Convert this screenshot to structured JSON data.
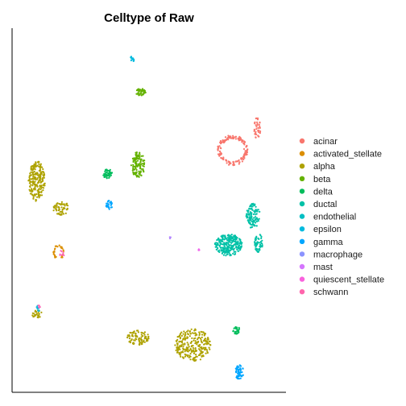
{
  "chart_data": {
    "type": "scatter",
    "title": "Celltype of Raw",
    "xlabel": "",
    "ylabel": "",
    "xlim": [
      0,
      100
    ],
    "ylim": [
      0,
      100
    ],
    "grid": false,
    "legend_position": "right",
    "series": [
      {
        "name": "acinar",
        "color": "#F8766D",
        "clusters": [
          {
            "cx": 80.5,
            "cy": 66.5,
            "rx": 5.5,
            "ry": 4.2,
            "n": 160,
            "ring": true
          },
          {
            "cx": 89.5,
            "cy": 72.5,
            "rx": 1.2,
            "ry": 3.0,
            "n": 40,
            "ring": false
          }
        ]
      },
      {
        "name": "activated_stellate",
        "color": "#DB8E00",
        "clusters": [
          {
            "cx": 17.0,
            "cy": 38.5,
            "rx": 2.0,
            "ry": 2.0,
            "n": 30,
            "ring": true
          }
        ]
      },
      {
        "name": "alpha",
        "color": "#AEA200",
        "clusters": [
          {
            "cx": 9.0,
            "cy": 58.0,
            "rx": 3.0,
            "ry": 5.5,
            "n": 220,
            "ring": false
          },
          {
            "cx": 66.0,
            "cy": 13.0,
            "rx": 6.5,
            "ry": 4.5,
            "n": 260,
            "ring": false
          },
          {
            "cx": 46.0,
            "cy": 15.0,
            "rx": 4.0,
            "ry": 2.0,
            "n": 90,
            "ring": false
          },
          {
            "cx": 18.0,
            "cy": 50.5,
            "rx": 3.0,
            "ry": 1.8,
            "n": 60,
            "ring": false
          },
          {
            "cx": 9.0,
            "cy": 21.5,
            "rx": 2.0,
            "ry": 1.0,
            "n": 25,
            "ring": false
          }
        ]
      },
      {
        "name": "beta",
        "color": "#64B200",
        "clusters": [
          {
            "cx": 46.0,
            "cy": 62.5,
            "rx": 2.5,
            "ry": 3.5,
            "n": 120,
            "ring": false
          },
          {
            "cx": 47.0,
            "cy": 82.5,
            "rx": 1.8,
            "ry": 1.2,
            "n": 45,
            "ring": false
          }
        ]
      },
      {
        "name": "delta",
        "color": "#00BD5C",
        "clusters": [
          {
            "cx": 35.0,
            "cy": 60.0,
            "rx": 1.8,
            "ry": 1.4,
            "n": 45,
            "ring": false
          },
          {
            "cx": 82.0,
            "cy": 17.0,
            "rx": 1.4,
            "ry": 1.0,
            "n": 30,
            "ring": false
          }
        ]
      },
      {
        "name": "ductal",
        "color": "#00C1A7",
        "clusters": [
          {
            "cx": 79.0,
            "cy": 40.5,
            "rx": 5.0,
            "ry": 3.0,
            "n": 260,
            "ring": false
          },
          {
            "cx": 88.0,
            "cy": 48.5,
            "rx": 2.5,
            "ry": 3.5,
            "n": 110,
            "ring": false
          },
          {
            "cx": 90.0,
            "cy": 41.0,
            "rx": 1.5,
            "ry": 2.5,
            "n": 60,
            "ring": false
          }
        ]
      },
      {
        "name": "endothelial",
        "color": "#00BADE",
        "clusters": [
          {
            "cx": 44.0,
            "cy": 91.5,
            "rx": 0.8,
            "ry": 1.2,
            "n": 12,
            "ring": false
          },
          {
            "cx": 9.5,
            "cy": 23.0,
            "rx": 0.8,
            "ry": 0.8,
            "n": 8,
            "ring": false
          }
        ]
      },
      {
        "name": "epsilon",
        "color": "#00A6FF",
        "clusters": [
          {
            "cx": 35.5,
            "cy": 51.5,
            "rx": 1.2,
            "ry": 1.2,
            "n": 30,
            "ring": false
          }
        ]
      },
      {
        "name": "gamma",
        "color": "#00A6FF",
        "clusters": [
          {
            "cx": 83.0,
            "cy": 5.5,
            "rx": 1.5,
            "ry": 2.0,
            "n": 60,
            "ring": false
          }
        ]
      },
      {
        "name": "macrophage",
        "color": "#B385FF",
        "clusters": [
          {
            "cx": 57.5,
            "cy": 42.5,
            "rx": 0.4,
            "ry": 0.4,
            "n": 4,
            "ring": false
          }
        ]
      },
      {
        "name": "mast",
        "color": "#EF67EB",
        "clusters": [
          {
            "cx": 68.0,
            "cy": 39.0,
            "rx": 0.4,
            "ry": 0.4,
            "n": 4,
            "ring": false
          }
        ]
      },
      {
        "name": "quiescent_stellate",
        "color": "#FF63B6",
        "clusters": [
          {
            "cx": 18.0,
            "cy": 38.0,
            "rx": 1.0,
            "ry": 1.0,
            "n": 8,
            "ring": false
          }
        ]
      },
      {
        "name": "schwann",
        "color": "#FF63B6",
        "clusters": [
          {
            "cx": 10.0,
            "cy": 23.5,
            "rx": 0.6,
            "ry": 0.6,
            "n": 4,
            "ring": false
          }
        ]
      }
    ]
  },
  "legend_colors": [
    "#F8766D",
    "#DB8E00",
    "#AEA200",
    "#64B200",
    "#00BD5C",
    "#00C1A7",
    "#00BFC4",
    "#00BADE",
    "#00A6FF",
    "#8B93FF",
    "#D575FE",
    "#F962DD",
    "#FF65AC"
  ]
}
